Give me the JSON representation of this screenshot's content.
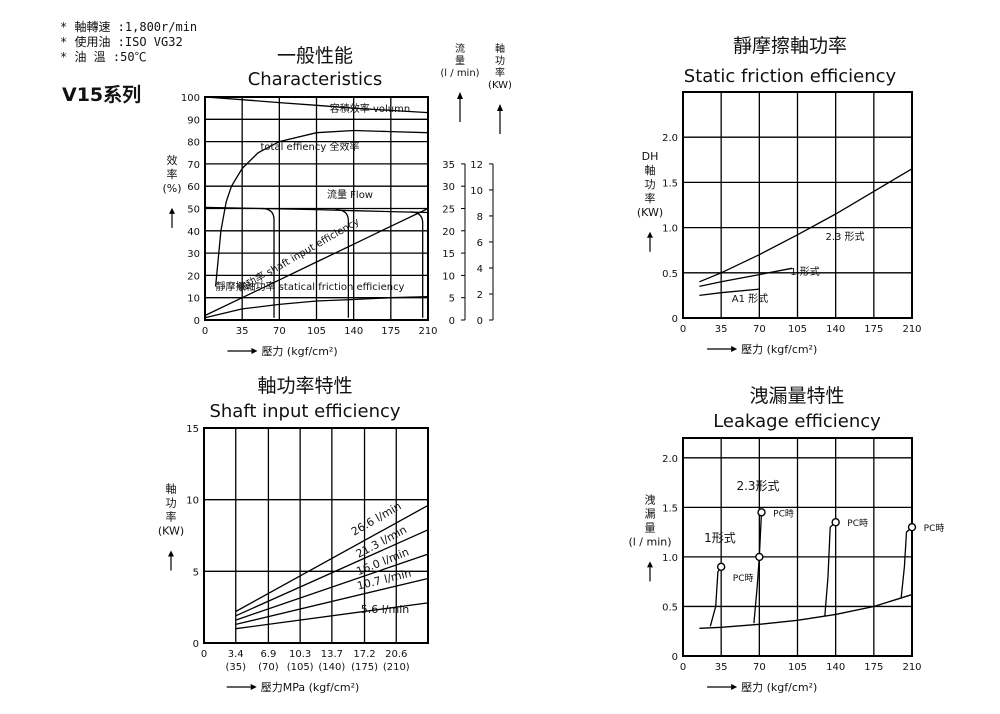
{
  "notes": [
    "* 軸轉速 :1,800r/min",
    "* 使用油 :ISO VG32",
    "* 油 溫 :50℃"
  ],
  "series_label": "V15系列",
  "chart_data": [
    {
      "id": "characteristics",
      "type": "line",
      "title": "一般性能",
      "subtitle": "Characteristics",
      "xlabel": "壓力 (kgf/cm²)",
      "ylabel": "效率 (%)",
      "xlim": [
        0,
        210
      ],
      "ylim": [
        0,
        100
      ],
      "x_ticks": [
        0,
        35,
        70,
        105,
        140,
        175,
        210
      ],
      "y_ticks": [
        0,
        10,
        20,
        30,
        40,
        50,
        60,
        70,
        80,
        90,
        100
      ],
      "y_tick_labels": [
        "0",
        "10",
        "20",
        "30",
        "40",
        "50",
        "60",
        "70",
        "80",
        "90",
        "100"
      ],
      "right_axes": [
        {
          "label_lines": [
            "流",
            "量",
            "(l / min)"
          ],
          "ticks": [
            0,
            5,
            10,
            15,
            20,
            25,
            30,
            35
          ],
          "range": [
            0,
            35
          ]
        },
        {
          "label_lines": [
            "軸",
            "功",
            "率",
            "(KW)"
          ],
          "ticks": [
            0,
            2,
            4,
            6,
            8,
            10,
            12
          ],
          "range": [
            0,
            12
          ]
        }
      ],
      "grid": true,
      "series": [
        {
          "name": "容積效率 volumn",
          "x": [
            0,
            35,
            70,
            105,
            140,
            175,
            210
          ],
          "y": [
            100,
            98.8,
            97.5,
            96.3,
            95,
            94,
            93
          ]
        },
        {
          "name": "total effiency 全效率",
          "x": [
            10,
            15,
            20,
            25,
            35,
            50,
            70,
            105,
            140,
            175,
            210
          ],
          "y": [
            15,
            40,
            53,
            60,
            68,
            75,
            80,
            84,
            85,
            84.5,
            84
          ]
        },
        {
          "name": "流量 Flow",
          "x": [
            0,
            35,
            70,
            105,
            140,
            175,
            210
          ],
          "y": [
            50.5,
            50.2,
            49.8,
            49.5,
            49,
            48.6,
            48.2
          ]
        },
        {
          "name": "軸功率 shaft input efficiency",
          "x": [
            0,
            35,
            70,
            105,
            140,
            175,
            210
          ],
          "y": [
            2,
            10,
            18,
            26,
            34,
            42,
            50
          ]
        },
        {
          "name": "靜摩擦軸功率 statical friction efficiency",
          "x": [
            0,
            35,
            70,
            105,
            140,
            175,
            210
          ],
          "y": [
            1,
            5,
            7,
            8.5,
            9.2,
            10,
            10.5
          ]
        }
      ],
      "cutoff_curves_y": [
        50,
        49.5,
        48.5
      ],
      "cutoff_x": [
        65,
        135,
        205
      ]
    },
    {
      "id": "static-friction",
      "type": "line",
      "title": "靜摩擦軸功率",
      "subtitle": "Static friction efficiency",
      "xlabel": "壓力 (kgf/cm²)",
      "ylabel": "DH 軸功率 (KW)",
      "ylabel_lines": [
        "DH",
        "軸",
        "功",
        "率",
        "(KW)"
      ],
      "xlim": [
        0,
        210
      ],
      "ylim": [
        0,
        2.5
      ],
      "x_ticks": [
        0,
        35,
        70,
        105,
        140,
        175,
        210
      ],
      "y_ticks": [
        0,
        0.5,
        1.0,
        1.5,
        2.0
      ],
      "y_tick_labels": [
        "0",
        "0.5",
        "1.0",
        "1.5",
        "2.0"
      ],
      "grid": true,
      "series": [
        {
          "name": "2.3 形式",
          "x": [
            15,
            35,
            70,
            105,
            140,
            175,
            210
          ],
          "y": [
            0.4,
            0.5,
            0.7,
            0.92,
            1.15,
            1.4,
            1.65
          ]
        },
        {
          "name": "1 形式",
          "x": [
            15,
            35,
            70,
            100
          ],
          "y": [
            0.35,
            0.4,
            0.48,
            0.55
          ]
        },
        {
          "name": "A1 形式",
          "x": [
            15,
            35,
            70
          ],
          "y": [
            0.25,
            0.28,
            0.32
          ]
        }
      ]
    },
    {
      "id": "shaft-input",
      "type": "line",
      "title": "軸功率特性",
      "subtitle": "Shaft input efficiency",
      "xlabel": "壓力MPa (kgf/cm²)",
      "ylabel": "軸功率 (KW)",
      "ylabel_lines": [
        "軸",
        "功",
        "率",
        "(KW)"
      ],
      "xlim": [
        0,
        24
      ],
      "ylim": [
        0,
        15
      ],
      "x_ticks": [
        0,
        3.4,
        6.9,
        10.3,
        13.7,
        17.2,
        20.6
      ],
      "x_tick_labels": [
        "0",
        "3.4",
        "6.9",
        "10.3",
        "13.7",
        "17.2",
        "20.6"
      ],
      "x_tick_sublabels": [
        "",
        "(35)",
        "(70)",
        "(105)",
        "(140)",
        "(175)",
        "(210)"
      ],
      "y_ticks": [
        0,
        5,
        10,
        15
      ],
      "y_tick_labels": [
        "0",
        "5",
        "10",
        "15"
      ],
      "grid": true,
      "series": [
        {
          "name": "26.6 l/min",
          "x": [
            3.4,
            24
          ],
          "y": [
            2.2,
            9.6
          ]
        },
        {
          "name": "21.3 l/min",
          "x": [
            3.4,
            24
          ],
          "y": [
            1.9,
            7.9
          ]
        },
        {
          "name": "16.0 l/min",
          "x": [
            3.4,
            24
          ],
          "y": [
            1.6,
            6.2
          ]
        },
        {
          "name": "10.7 l/min",
          "x": [
            3.4,
            24
          ],
          "y": [
            1.3,
            4.5
          ]
        },
        {
          "name": "5.6 l/min",
          "x": [
            3.4,
            24
          ],
          "y": [
            1.0,
            2.8
          ]
        }
      ]
    },
    {
      "id": "leakage",
      "type": "line",
      "title": "洩漏量特性",
      "subtitle": "Leakage efficiency",
      "xlabel": "壓力 (kgf/cm²)",
      "ylabel": "洩漏量 (l / min)",
      "ylabel_lines": [
        "洩",
        "漏",
        "量",
        "(l / min)"
      ],
      "xlim": [
        0,
        210
      ],
      "ylim": [
        0,
        2.2
      ],
      "x_ticks": [
        0,
        35,
        70,
        105,
        140,
        175,
        210
      ],
      "y_ticks": [
        0,
        0.5,
        1.0,
        1.5,
        2.0
      ],
      "y_tick_labels": [
        "0",
        "0.5",
        "1.0",
        "1.5",
        "2.0"
      ],
      "grid": true,
      "base_curve": {
        "x": [
          15,
          35,
          70,
          105,
          140,
          175,
          210
        ],
        "y": [
          0.28,
          0.29,
          0.32,
          0.36,
          0.42,
          0.5,
          0.62
        ]
      },
      "series": [
        {
          "name": "1形式",
          "x": [
            25,
            30,
            32,
            35
          ],
          "y": [
            0.3,
            0.5,
            0.85,
            0.9
          ]
        },
        {
          "name": "2.3形式",
          "x": [
            65,
            68,
            70,
            72
          ],
          "y": [
            0.33,
            0.7,
            1.0,
            1.45
          ]
        },
        {
          "name": "PC時 140",
          "x": [
            130,
            133,
            135,
            140
          ],
          "y": [
            0.4,
            0.8,
            1.3,
            1.35
          ]
        },
        {
          "name": "PC時 210",
          "x": [
            200,
            203,
            205,
            210
          ],
          "y": [
            0.58,
            0.9,
            1.25,
            1.3
          ]
        }
      ],
      "markers": [
        {
          "x": 35,
          "y": 0.9,
          "label": "PC時"
        },
        {
          "x": 70,
          "y": 1.0,
          "label": ""
        },
        {
          "x": 72,
          "y": 1.45,
          "label": "PC時"
        },
        {
          "x": 140,
          "y": 1.35,
          "label": "PC時"
        },
        {
          "x": 210,
          "y": 1.3,
          "label": "PC時"
        }
      ],
      "annotations": [
        {
          "text": "2.3形式"
        },
        {
          "text": "1形式"
        }
      ]
    }
  ]
}
